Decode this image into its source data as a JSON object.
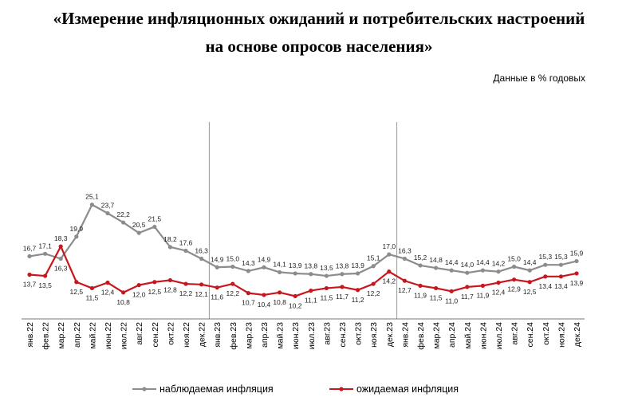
{
  "header": {
    "title_line1": "«Измерение инфляционных ожиданий и потребительских настроений",
    "title_line2": "на основе опросов населения»",
    "units": "Данные в % годовых"
  },
  "colors": {
    "observed": "#8c8c8c",
    "expected": "#c8161d",
    "divider": "#999999"
  },
  "chart_data": {
    "type": "line",
    "x": [
      "янв.22",
      "фев.22",
      "мар.22",
      "апр.22",
      "май.22",
      "июн.22",
      "июл.22",
      "авг.22",
      "сен.22",
      "окт.22",
      "ноя.22",
      "дек.22",
      "янв.23",
      "фев.23",
      "мар.23",
      "апр.23",
      "май.23",
      "июн.23",
      "июл.23",
      "авг.23",
      "сен.23",
      "окт.23",
      "ноя.23",
      "дек.23",
      "янв.24",
      "фев.24",
      "мар.24",
      "апр.24",
      "май.24",
      "июн.24",
      "июл.24",
      "авг.24",
      "сен.24",
      "окт.24",
      "ноя.24",
      "дек.24"
    ],
    "series": [
      {
        "name": "наблюдаемая инфляция",
        "values": [
          16.7,
          17.1,
          16.3,
          19.9,
          25.1,
          23.7,
          22.2,
          20.5,
          21.5,
          18.2,
          17.6,
          16.3,
          14.9,
          15.0,
          14.3,
          14.9,
          14.1,
          13.9,
          13.8,
          13.5,
          13.8,
          13.9,
          15.1,
          17.0,
          16.3,
          15.2,
          14.8,
          14.4,
          14.0,
          14.4,
          14.2,
          15.0,
          14.4,
          15.3,
          15.3,
          15.9
        ],
        "value_labels": [
          "16,7",
          "17,1",
          "16,3",
          "19,9",
          "25,1",
          "23,7",
          "22,2",
          "20,5",
          "21,5",
          "18,2",
          "17,6",
          "16,3",
          "14,9",
          "15,0",
          "14,3",
          "14,9",
          "14,1",
          "13,9",
          "13,8",
          "13,5",
          "13,8",
          "13,9",
          "15,1",
          "17,0",
          "16,3",
          "15,2",
          "14,8",
          "14,4",
          "14,0",
          "14,4",
          "14,2",
          "15,0",
          "14,4",
          "15,3",
          "15,3",
          "15,9"
        ]
      },
      {
        "name": "ожидаемая инфляция",
        "values": [
          13.7,
          13.5,
          18.3,
          12.5,
          11.5,
          12.4,
          10.8,
          12.0,
          12.5,
          12.8,
          12.2,
          12.1,
          11.6,
          12.2,
          10.7,
          10.4,
          10.8,
          10.2,
          11.1,
          11.5,
          11.7,
          11.2,
          12.2,
          14.2,
          12.7,
          11.9,
          11.5,
          11.0,
          11.7,
          11.9,
          12.4,
          12.9,
          12.5,
          13.4,
          13.4,
          13.9
        ],
        "value_labels": [
          "13,7",
          "13,5",
          "18,3",
          "12,5",
          "11,5",
          "12,4",
          "10,8",
          "12,0",
          "12,5",
          "12,8",
          "12,2",
          "12,1",
          "11,6",
          "12,2",
          "10,7",
          "10,4",
          "10,8",
          "10,2",
          "11,1",
          "11,5",
          "11,7",
          "11,2",
          "12,2",
          "14,2",
          "12,7",
          "11,9",
          "11,5",
          "11,0",
          "11,7",
          "11,9",
          "12,4",
          "12,9",
          "12,5",
          "13,4",
          "13,4",
          "13,9"
        ]
      }
    ],
    "year_dividers_after": [
      "дек.22",
      "дек.23"
    ],
    "grid": false,
    "legend_position": "bottom-center"
  }
}
